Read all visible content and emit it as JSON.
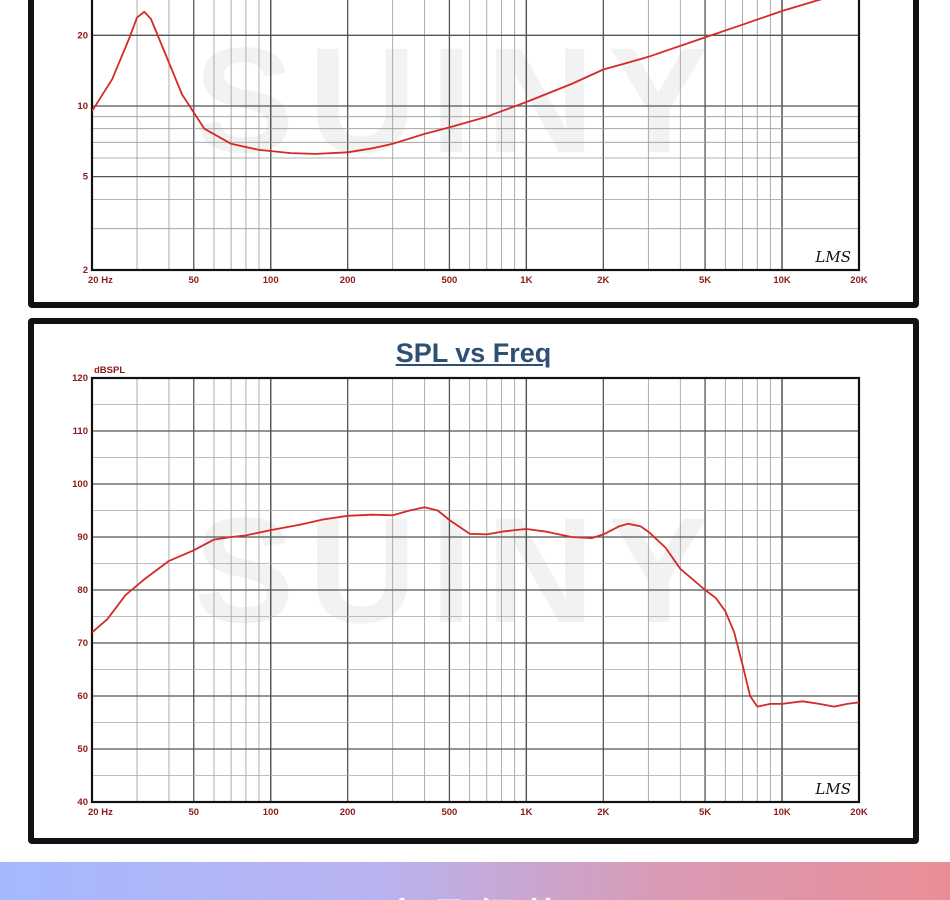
{
  "chart_data": [
    {
      "type": "line",
      "title": "",
      "ylabel": "",
      "x_scale": "log",
      "y_scale": "log",
      "xlim": [
        20,
        20000
      ],
      "ylim": [
        2,
        30
      ],
      "x_tick_labels": [
        "20 Hz",
        "50",
        "100",
        "200",
        "500",
        "1K",
        "2K",
        "5K",
        "10K",
        "20K"
      ],
      "x_tick_values": [
        20,
        50,
        100,
        200,
        500,
        1000,
        2000,
        5000,
        10000,
        20000
      ],
      "y_tick_labels": [
        "2",
        "5",
        "10",
        "20"
      ],
      "y_tick_values": [
        2,
        5,
        10,
        20
      ],
      "grid": true,
      "watermark": "SUINY",
      "brand": "LMS",
      "line_color": "#d42a2a",
      "series": [
        {
          "x": [
            20,
            24,
            28,
            30,
            32,
            34,
            38,
            45,
            55,
            70,
            90,
            120,
            150,
            200,
            250,
            300,
            400,
            500,
            700,
            1000,
            1500,
            2000,
            2500,
            3000,
            5000,
            7000,
            10000,
            15000,
            20000
          ],
          "y": [
            9.5,
            13,
            19.5,
            23.8,
            25.2,
            23.5,
            17.5,
            11.2,
            8.0,
            6.9,
            6.5,
            6.3,
            6.25,
            6.35,
            6.6,
            6.9,
            7.6,
            8.1,
            9.0,
            10.4,
            12.4,
            14.3,
            15.3,
            16.2,
            19.6,
            22.2,
            25.4,
            29.0,
            32.0
          ]
        }
      ]
    },
    {
      "type": "line",
      "title": "SPL vs Freq",
      "ylabel": "dBSPL",
      "x_scale": "log",
      "xlim": [
        20,
        20000
      ],
      "ylim": [
        40,
        120
      ],
      "x_tick_labels": [
        "20 Hz",
        "50",
        "100",
        "200",
        "500",
        "1K",
        "2K",
        "5K",
        "10K",
        "20K"
      ],
      "x_tick_values": [
        20,
        50,
        100,
        200,
        500,
        1000,
        2000,
        5000,
        10000,
        20000
      ],
      "y_tick_labels": [
        "40",
        "50",
        "60",
        "70",
        "80",
        "90",
        "100",
        "110",
        "120"
      ],
      "y_tick_values": [
        40,
        50,
        60,
        70,
        80,
        90,
        100,
        110,
        120
      ],
      "grid": true,
      "watermark": "SUINY",
      "brand": "LMS",
      "line_color": "#d42a2a",
      "series": [
        {
          "x": [
            20,
            23,
            27,
            32,
            40,
            50,
            60,
            70,
            80,
            100,
            130,
            160,
            200,
            250,
            300,
            350,
            400,
            450,
            500,
            600,
            700,
            800,
            900,
            1000,
            1200,
            1500,
            1800,
            2000,
            2300,
            2500,
            2800,
            3000,
            3500,
            4000,
            5000,
            5500,
            6000,
            6500,
            7000,
            7500,
            8000,
            9000,
            10000,
            12000,
            14000,
            16000,
            18000,
            20000
          ],
          "y": [
            72,
            74.5,
            79,
            82,
            85.5,
            87.5,
            89.5,
            90,
            90.3,
            91.3,
            92.3,
            93.3,
            94.0,
            94.2,
            94.1,
            95.0,
            95.6,
            95.0,
            93.2,
            90.6,
            90.5,
            91.0,
            91.3,
            91.5,
            91.0,
            90.0,
            89.8,
            90.5,
            92.0,
            92.5,
            92.0,
            91.0,
            88.0,
            84.0,
            80.0,
            78.5,
            76.0,
            72.0,
            66.0,
            60.0,
            58.0,
            58.5,
            58.5,
            59.0,
            58.5,
            58.0,
            58.5,
            58.8
          ]
        }
      ]
    }
  ],
  "banner": {
    "text": "产品细节"
  }
}
